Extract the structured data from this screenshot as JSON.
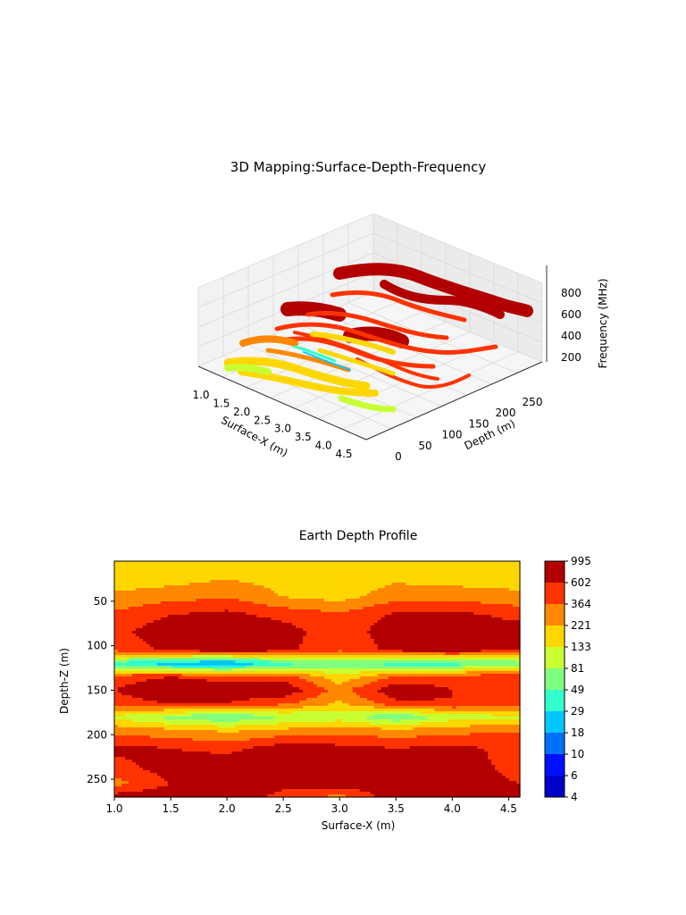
{
  "chart_data": [
    {
      "type": "surface3d",
      "title": "3D Mapping:Surface-Depth-Frequency",
      "xlabel": "Surface-X (m)",
      "ylabel": "Depth (m)",
      "zlabel": "Frequency (MHz)",
      "x_ticks": [
        "1.0",
        "1.5",
        "2.0",
        "2.5",
        "3.0",
        "3.5",
        "4.0",
        "4.5"
      ],
      "y_ticks": [
        "0",
        "50",
        "100",
        "150",
        "200",
        "250"
      ],
      "z_ticks": [
        "200",
        "400",
        "600",
        "800"
      ],
      "xlim": [
        1.0,
        4.6
      ],
      "ylim": [
        0,
        270
      ],
      "zlim": [
        100,
        1000
      ],
      "grid": true
    },
    {
      "type": "heatmap",
      "title": "Earth Depth Profile",
      "xlabel": "Surface-X (m)",
      "ylabel": "Depth-Z (m)",
      "x_ticks": [
        "1.0",
        "1.5",
        "2.0",
        "2.5",
        "3.0",
        "3.5",
        "4.0",
        "4.5"
      ],
      "y_ticks": [
        "50",
        "100",
        "150",
        "200",
        "250"
      ],
      "xlim": [
        1.0,
        4.6
      ],
      "ylim": [
        270,
        5
      ],
      "colorbar_levels": [
        "995",
        "602",
        "364",
        "221",
        "133",
        "81",
        "49",
        "29",
        "18",
        "10",
        "6",
        "4"
      ],
      "colorbar_colors": [
        "#b20000",
        "#ff3300",
        "#ff8800",
        "#ffd700",
        "#c8ff33",
        "#80ff80",
        "#33ffcc",
        "#00c8ff",
        "#0070ff",
        "#0010ff",
        "#0000c8",
        "#000080"
      ],
      "x": [
        1.0,
        1.5,
        2.0,
        2.5,
        3.0,
        3.5,
        4.0,
        4.6
      ],
      "z": [
        5,
        25,
        45,
        65,
        85,
        105,
        120,
        135,
        150,
        165,
        180,
        195,
        215,
        235,
        255,
        270
      ],
      "values": [
        [
          150,
          150,
          200,
          150,
          160,
          200,
          160,
          150
        ],
        [
          160,
          180,
          220,
          180,
          160,
          200,
          180,
          170
        ],
        [
          250,
          300,
          350,
          220,
          180,
          300,
          300,
          260
        ],
        [
          400,
          600,
          700,
          500,
          400,
          650,
          700,
          500
        ],
        [
          500,
          900,
          1000,
          800,
          400,
          900,
          1000,
          800
        ],
        [
          400,
          700,
          800,
          700,
          400,
          700,
          800,
          600
        ],
        [
          40,
          20,
          15,
          40,
          60,
          40,
          40,
          60
        ],
        [
          500,
          600,
          500,
          500,
          150,
          400,
          500,
          500
        ],
        [
          600,
          900,
          800,
          900,
          300,
          900,
          600,
          500
        ],
        [
          500,
          600,
          600,
          400,
          200,
          500,
          600,
          400
        ],
        [
          120,
          70,
          50,
          80,
          100,
          50,
          100,
          120
        ],
        [
          300,
          250,
          200,
          250,
          300,
          250,
          300,
          350
        ],
        [
          700,
          600,
          500,
          800,
          700,
          600,
          700,
          500
        ],
        [
          500,
          800,
          900,
          900,
          700,
          900,
          800,
          500
        ],
        [
          300,
          600,
          900,
          700,
          900,
          700,
          800,
          600
        ],
        [
          800,
          900,
          900,
          500,
          300,
          900,
          900,
          800
        ]
      ]
    }
  ]
}
